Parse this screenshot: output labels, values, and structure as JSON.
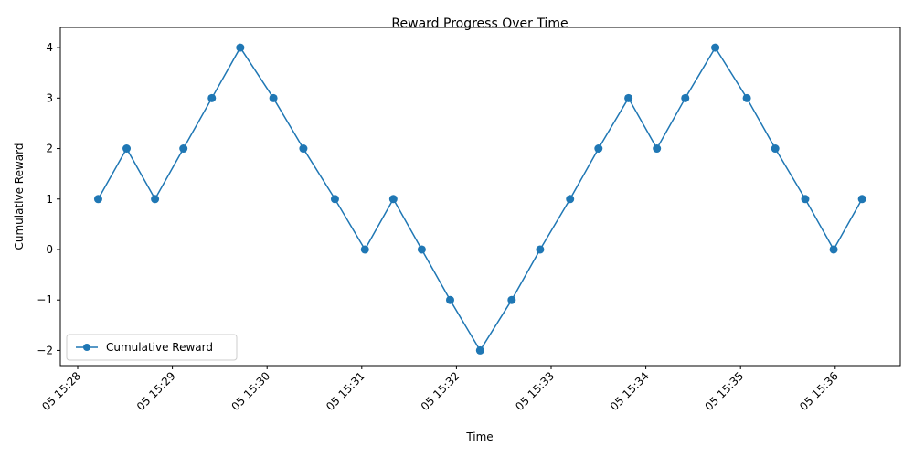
{
  "chart_data": {
    "type": "line",
    "title": "Reward Progress Over Time",
    "xlabel": "Time",
    "ylabel": "Cumulative Reward",
    "x_ticks": [
      "05 15:28",
      "05 15:29",
      "05 15:30",
      "05 15:31",
      "05 15:32",
      "05 15:33",
      "05 15:34",
      "05 15:35",
      "05 15:36"
    ],
    "y_ticks": [
      "−2",
      "−1",
      "0",
      "1",
      "2",
      "3",
      "4"
    ],
    "y_tick_values": [
      -2,
      -1,
      0,
      1,
      2,
      3,
      4
    ],
    "grid": false,
    "legend_position": "lower-left",
    "series": [
      {
        "name": "Cumulative Reward",
        "color": "#1f77b4",
        "marker": "circle",
        "x": [
          "15:28:13",
          "15:28:31",
          "15:28:49",
          "15:29:07",
          "15:29:25",
          "15:29:43",
          "15:30:04",
          "15:30:23",
          "15:30:43",
          "15:31:02",
          "15:31:20",
          "15:31:38",
          "15:31:56",
          "15:32:15",
          "15:32:35",
          "15:32:53",
          "15:33:12",
          "15:33:30",
          "15:33:49",
          "15:34:07",
          "15:34:25",
          "15:34:44",
          "15:35:04",
          "15:35:22",
          "15:35:41",
          "15:35:59",
          "15:36:17"
        ],
        "values": [
          1,
          2,
          1,
          2,
          3,
          4,
          3,
          2,
          1,
          0,
          1,
          0,
          -1,
          -2,
          -1,
          0,
          1,
          2,
          3,
          2,
          3,
          4,
          3,
          2,
          1,
          0,
          1
        ]
      }
    ]
  }
}
